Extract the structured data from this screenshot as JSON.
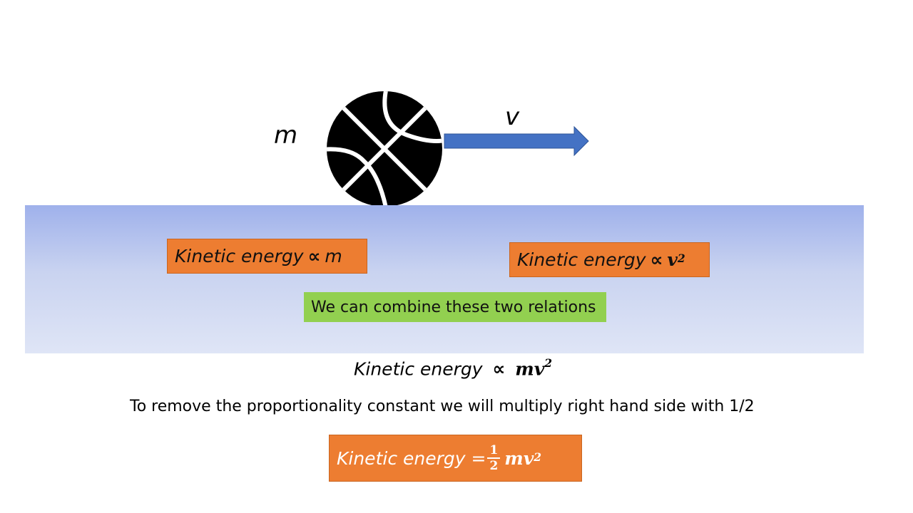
{
  "diagram": {
    "mass_label": "m",
    "velocity_label": "v",
    "ball_icon": "basketball-icon",
    "arrow_icon": "right-arrow-icon"
  },
  "relations": {
    "ke_mass": {
      "lhs": "Kinetic energy",
      "symbol": "∝",
      "rhs": "m"
    },
    "ke_velocity": {
      "lhs": "Kinetic energy",
      "symbol": "∝",
      "rhs": "v",
      "exponent": "2"
    },
    "combine_text": "We can combine these two relations"
  },
  "combined": {
    "lhs": "Kinetic energy",
    "symbol": "∝",
    "rhs": "mv",
    "exponent": "2"
  },
  "note": "To remove the proportionality constant we will multiply right hand side with 1/2",
  "final_formula": {
    "lhs": "Kinetic energy =",
    "frac_num": "1",
    "frac_den": "2",
    "rhs": "mv",
    "exponent": "2"
  },
  "colors": {
    "orange_box": "#ed7d31",
    "green_box": "#92d050",
    "arrow_blue": "#4472c4",
    "band_top": "#9fb1eb",
    "band_bottom": "#dfe5f6"
  }
}
